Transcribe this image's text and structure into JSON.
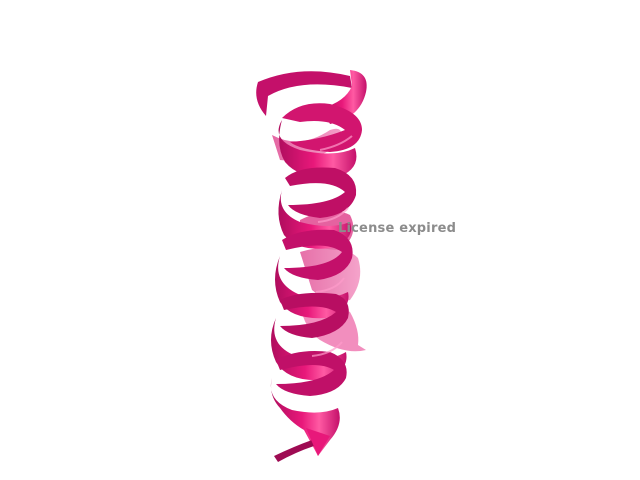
{
  "viewer": {
    "background": "#ffffff",
    "structure": {
      "type": "alpha-helix ribbon",
      "color": "#e8187a",
      "shadow_color": "#8a0a45",
      "highlight_color": "#ff7ab8",
      "back_color": "#f27ab3"
    },
    "watermark": {
      "text": "License expired",
      "color": "#8c8c8c"
    }
  }
}
